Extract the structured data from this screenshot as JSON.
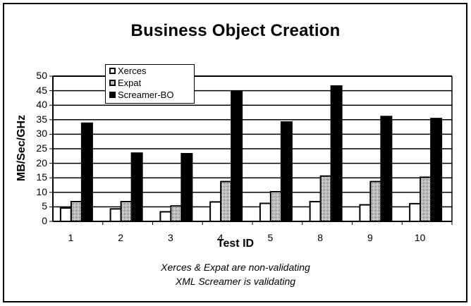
{
  "chart_data": {
    "type": "bar",
    "title": "Business Object Creation",
    "xlabel": "Test ID",
    "ylabel": "MB/Sec/GHz",
    "ylim": [
      0,
      50
    ],
    "yticks": [
      0,
      5,
      10,
      15,
      20,
      25,
      30,
      35,
      40,
      45,
      50
    ],
    "grid": true,
    "legend_position": "top-left inside",
    "categories": [
      "1",
      "2",
      "3",
      "4",
      "5",
      "8",
      "9",
      "10"
    ],
    "series": [
      {
        "name": "Xerces",
        "fill": "white",
        "values": [
          4.6,
          4.3,
          3.3,
          6.7,
          6.2,
          6.8,
          5.7,
          6.1
        ]
      },
      {
        "name": "Expat",
        "fill": "dotted",
        "values": [
          6.8,
          6.8,
          5.3,
          13.7,
          10.2,
          15.6,
          13.7,
          15.2
        ]
      },
      {
        "name": "Screamer-BO",
        "fill": "black",
        "values": [
          33.8,
          23.5,
          23.3,
          44.7,
          34.2,
          46.6,
          36.1,
          35.4
        ]
      }
    ],
    "annotations": [
      "Xerces & Expat are non-validating",
      "XML Screamer is validating"
    ]
  },
  "title": "Business Object Creation",
  "axes": {
    "ylabel": "MB/Sec/GHz",
    "xlabel": "Test ID",
    "yticks": [
      "0",
      "5",
      "10",
      "15",
      "20",
      "25",
      "30",
      "35",
      "40",
      "45",
      "50"
    ],
    "xticks": [
      "1",
      "2",
      "3",
      "4",
      "5",
      "8",
      "9",
      "10"
    ]
  },
  "legend": {
    "items": [
      {
        "label": "Xerces"
      },
      {
        "label": "Expat"
      },
      {
        "label": "Screamer-BO"
      }
    ]
  },
  "notes": {
    "line1": "Xerces & Expat are non-validating",
    "line2": "XML Screamer is validating"
  }
}
